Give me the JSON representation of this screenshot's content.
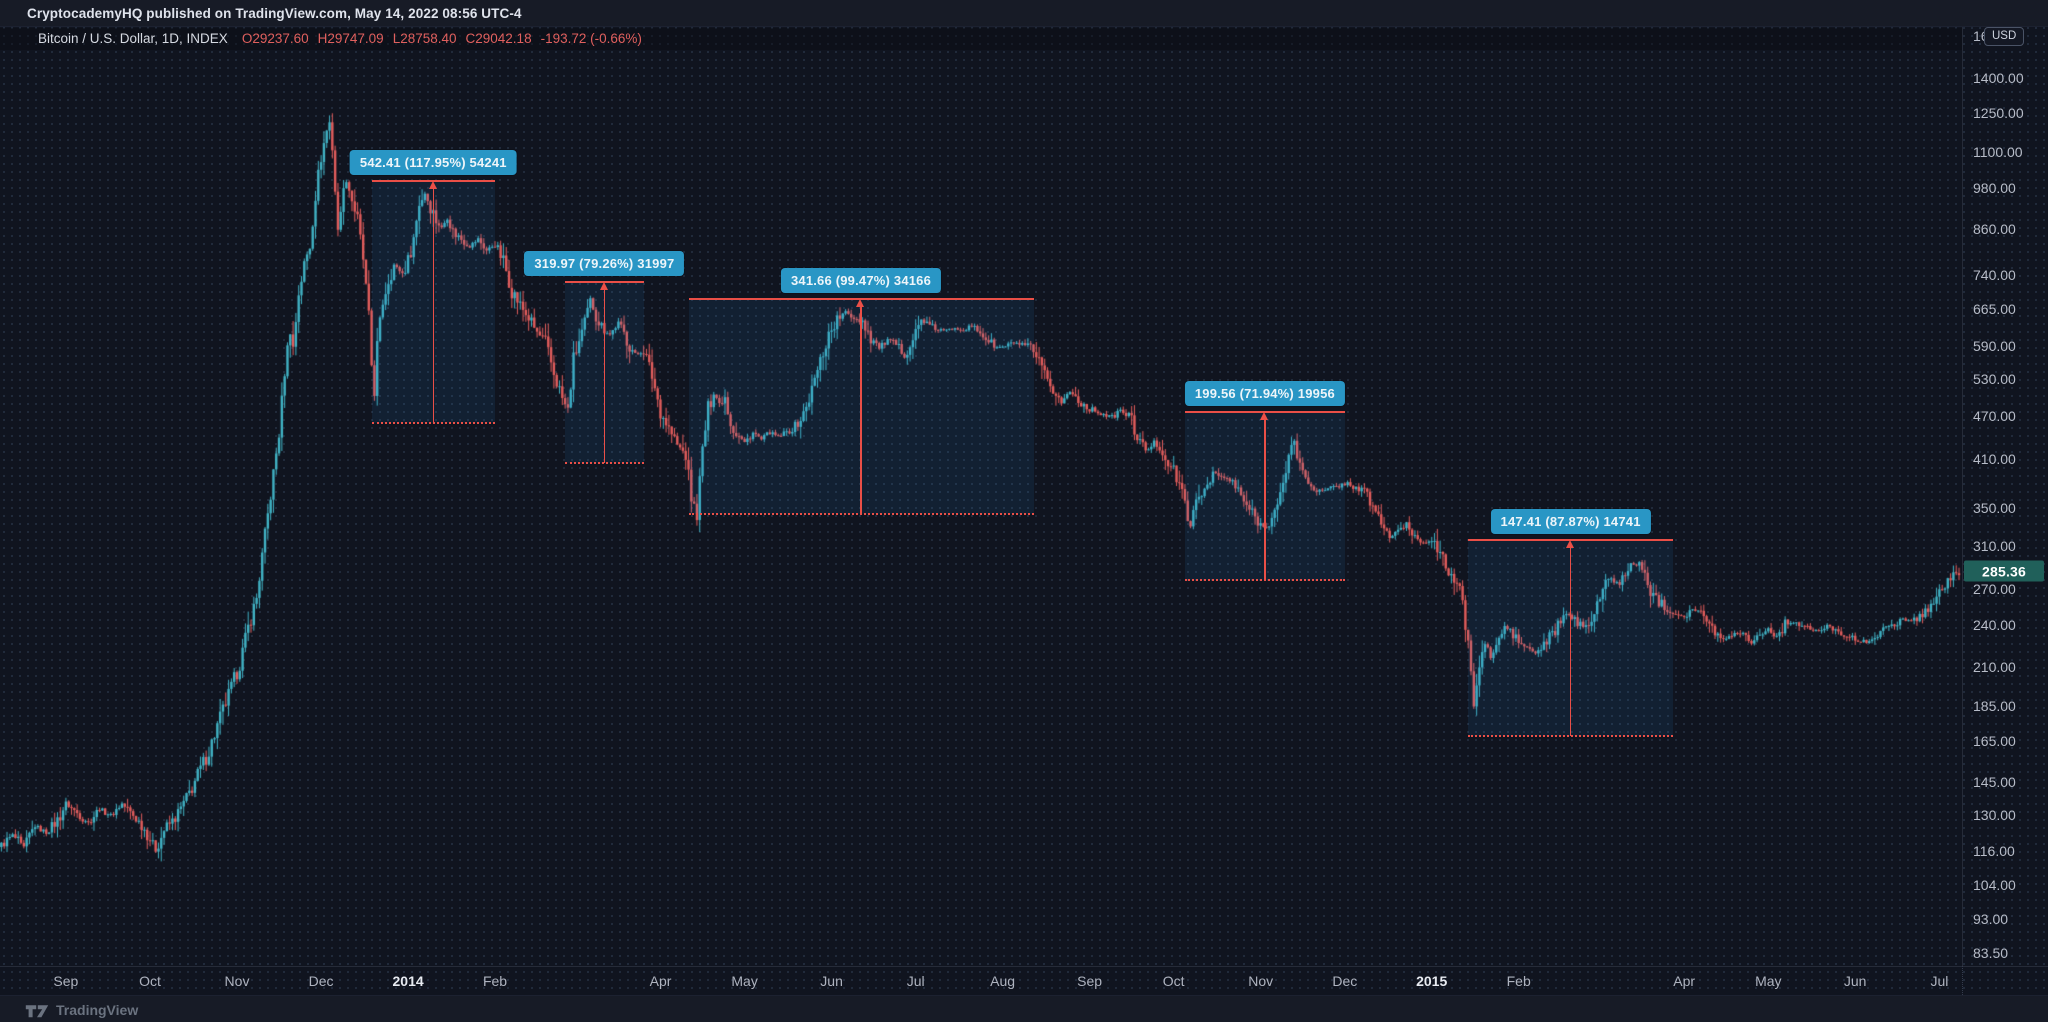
{
  "topbar": {
    "attribution": "CryptocademyHQ published on TradingView.com, May 14, 2022 08:56 UTC-4"
  },
  "legend": {
    "title": "Bitcoin / U.S. Dollar, 1D, INDEX",
    "values": [
      "O29237.60",
      "H29747.09",
      "L28758.40",
      "C29042.18",
      "-193.72 (-0.66%)"
    ]
  },
  "price_axis": {
    "unit": "USD",
    "last_price": "285.36",
    "ticks": [
      1600,
      1400,
      1250,
      1100,
      980,
      860,
      740,
      665,
      590,
      530,
      470,
      410,
      350,
      310,
      270,
      240,
      210,
      185,
      165,
      145,
      130,
      116,
      104,
      93,
      83.5
    ]
  },
  "time_axis": {
    "labels": [
      {
        "day": 23,
        "text": "Sep"
      },
      {
        "day": 53,
        "text": "Oct"
      },
      {
        "day": 84,
        "text": "Nov"
      },
      {
        "day": 114,
        "text": "Dec"
      },
      {
        "day": 145,
        "text": "2014",
        "bold": true
      },
      {
        "day": 176,
        "text": "Feb"
      },
      {
        "day": 235,
        "text": "Apr"
      },
      {
        "day": 265,
        "text": "May"
      },
      {
        "day": 296,
        "text": "Jun"
      },
      {
        "day": 326,
        "text": "Jul"
      },
      {
        "day": 357,
        "text": "Aug"
      },
      {
        "day": 388,
        "text": "Sep"
      },
      {
        "day": 418,
        "text": "Oct"
      },
      {
        "day": 449,
        "text": "Nov"
      },
      {
        "day": 479,
        "text": "Dec"
      },
      {
        "day": 510,
        "text": "2015",
        "bold": true
      },
      {
        "day": 541,
        "text": "Feb"
      },
      {
        "day": 600,
        "text": "Apr"
      },
      {
        "day": 630,
        "text": "May"
      },
      {
        "day": 661,
        "text": "Jun"
      },
      {
        "day": 691,
        "text": "Jul"
      }
    ]
  },
  "watermark": {
    "logo": "tradingview-logo",
    "text": "TradingView"
  },
  "colors": {
    "up_candle": "#41b3c5",
    "down_candle": "#e25d5c",
    "range_line": "#ea4f47",
    "range_fill": "rgba(40,150,230,0.10)",
    "label_pill": "#2996c5",
    "price_tag_bg": "#20605a",
    "legend_values": "#e0605e",
    "background": "#10141f"
  },
  "chart_data": {
    "type": "candlestick",
    "title": "Bitcoin / U.S. Dollar, 1D, INDEX",
    "y_scale": "log",
    "ylim": [
      80.3,
      1663
    ],
    "x_days_total": 699,
    "x_range_note": "approx Aug 2013 to Jul 2015, daily bars",
    "last_close": 285.36,
    "price_path": [
      [
        0,
        118
      ],
      [
        4,
        122
      ],
      [
        8,
        117
      ],
      [
        12,
        126
      ],
      [
        16,
        123
      ],
      [
        20,
        128
      ],
      [
        23,
        135
      ],
      [
        27,
        131
      ],
      [
        31,
        127
      ],
      [
        35,
        133
      ],
      [
        39,
        130
      ],
      [
        43,
        135
      ],
      [
        47,
        130
      ],
      [
        50,
        126
      ],
      [
        53,
        121
      ],
      [
        55,
        116
      ],
      [
        58,
        124
      ],
      [
        62,
        129
      ],
      [
        66,
        137
      ],
      [
        70,
        148
      ],
      [
        74,
        160
      ],
      [
        78,
        178
      ],
      [
        82,
        196
      ],
      [
        85,
        212
      ],
      [
        88,
        238
      ],
      [
        91,
        262
      ],
      [
        94,
        320
      ],
      [
        97,
        390
      ],
      [
        99,
        445
      ],
      [
        101,
        545
      ],
      [
        103,
        625
      ],
      [
        104,
        585
      ],
      [
        106,
        700
      ],
      [
        108,
        765
      ],
      [
        110,
        815
      ],
      [
        112,
        960
      ],
      [
        114,
        1085
      ],
      [
        116,
        1180
      ],
      [
        117,
        1210
      ],
      [
        118,
        1120
      ],
      [
        119,
        975
      ],
      [
        120,
        845
      ],
      [
        121,
        920
      ],
      [
        123,
        1010
      ],
      [
        125,
        945
      ],
      [
        127,
        885
      ],
      [
        129,
        780
      ],
      [
        131,
        645
      ],
      [
        132,
        555
      ],
      [
        133,
        505
      ],
      [
        134,
        590
      ],
      [
        136,
        680
      ],
      [
        138,
        730
      ],
      [
        140,
        765
      ],
      [
        143,
        745
      ],
      [
        145,
        775
      ],
      [
        147,
        835
      ],
      [
        149,
        935
      ],
      [
        151,
        965
      ],
      [
        153,
        925
      ],
      [
        155,
        885
      ],
      [
        157,
        862
      ],
      [
        159,
        892
      ],
      [
        161,
        852
      ],
      [
        164,
        832
      ],
      [
        167,
        812
      ],
      [
        170,
        832
      ],
      [
        173,
        802
      ],
      [
        176,
        818
      ],
      [
        179,
        775
      ],
      [
        182,
        705
      ],
      [
        185,
        672
      ],
      [
        188,
        645
      ],
      [
        191,
        615
      ],
      [
        194,
        595
      ],
      [
        197,
        540
      ],
      [
        200,
        498
      ],
      [
        202,
        478
      ],
      [
        204,
        565
      ],
      [
        206,
        598
      ],
      [
        208,
        632
      ],
      [
        210,
        682
      ],
      [
        212,
        652
      ],
      [
        214,
        628
      ],
      [
        217,
        612
      ],
      [
        220,
        635
      ],
      [
        223,
        602
      ],
      [
        226,
        572
      ],
      [
        229,
        582
      ],
      [
        232,
        535
      ],
      [
        235,
        478
      ],
      [
        238,
        452
      ],
      [
        241,
        428
      ],
      [
        244,
        415
      ],
      [
        246,
        362
      ],
      [
        248,
        344
      ],
      [
        250,
        422
      ],
      [
        252,
        482
      ],
      [
        254,
        508
      ],
      [
        256,
        490
      ],
      [
        258,
        502
      ],
      [
        260,
        462
      ],
      [
        262,
        445
      ],
      [
        265,
        432
      ],
      [
        268,
        446
      ],
      [
        271,
        436
      ],
      [
        274,
        446
      ],
      [
        277,
        440
      ],
      [
        280,
        446
      ],
      [
        283,
        455
      ],
      [
        286,
        472
      ],
      [
        289,
        512
      ],
      [
        292,
        562
      ],
      [
        295,
        612
      ],
      [
        298,
        642
      ],
      [
        301,
        657
      ],
      [
        304,
        646
      ],
      [
        307,
        640
      ],
      [
        310,
        606
      ],
      [
        313,
        586
      ],
      [
        316,
        601
      ],
      [
        319,
        591
      ],
      [
        322,
        572
      ],
      [
        325,
        602
      ],
      [
        328,
        641
      ],
      [
        331,
        629
      ],
      [
        334,
        621
      ],
      [
        337,
        619
      ],
      [
        340,
        626
      ],
      [
        343,
        621
      ],
      [
        346,
        629
      ],
      [
        349,
        616
      ],
      [
        352,
        599
      ],
      [
        355,
        586
      ],
      [
        358,
        589
      ],
      [
        361,
        596
      ],
      [
        364,
        591
      ],
      [
        367,
        586
      ],
      [
        370,
        556
      ],
      [
        373,
        521
      ],
      [
        376,
        506
      ],
      [
        378,
        491
      ],
      [
        381,
        509
      ],
      [
        384,
        496
      ],
      [
        387,
        483
      ],
      [
        390,
        479
      ],
      [
        393,
        473
      ],
      [
        396,
        469
      ],
      [
        399,
        479
      ],
      [
        402,
        471
      ],
      [
        405,
        443
      ],
      [
        408,
        419
      ],
      [
        411,
        433
      ],
      [
        414,
        421
      ],
      [
        417,
        399
      ],
      [
        420,
        379
      ],
      [
        422,
        353
      ],
      [
        424,
        331
      ],
      [
        426,
        353
      ],
      [
        429,
        373
      ],
      [
        432,
        393
      ],
      [
        435,
        386
      ],
      [
        438,
        383
      ],
      [
        441,
        369
      ],
      [
        444,
        353
      ],
      [
        447,
        339
      ],
      [
        450,
        329
      ],
      [
        453,
        339
      ],
      [
        455,
        351
      ],
      [
        457,
        373
      ],
      [
        459,
        421
      ],
      [
        461,
        433
      ],
      [
        463,
        399
      ],
      [
        465,
        386
      ],
      [
        468,
        373
      ],
      [
        471,
        369
      ],
      [
        474,
        373
      ],
      [
        477,
        376
      ],
      [
        480,
        379
      ],
      [
        483,
        373
      ],
      [
        486,
        369
      ],
      [
        489,
        353
      ],
      [
        492,
        333
      ],
      [
        495,
        319
      ],
      [
        498,
        323
      ],
      [
        501,
        333
      ],
      [
        504,
        319
      ],
      [
        507,
        313
      ],
      [
        510,
        317
      ],
      [
        513,
        299
      ],
      [
        516,
        287
      ],
      [
        519,
        273
      ],
      [
        521,
        259
      ],
      [
        523,
        223
      ],
      [
        525,
        189
      ],
      [
        527,
        209
      ],
      [
        529,
        227
      ],
      [
        531,
        217
      ],
      [
        533,
        223
      ],
      [
        536,
        239
      ],
      [
        539,
        233
      ],
      [
        541,
        227
      ],
      [
        544,
        223
      ],
      [
        547,
        219
      ],
      [
        550,
        225
      ],
      [
        553,
        233
      ],
      [
        556,
        243
      ],
      [
        559,
        249
      ],
      [
        562,
        241
      ],
      [
        565,
        239
      ],
      [
        568,
        253
      ],
      [
        571,
        269
      ],
      [
        574,
        279
      ],
      [
        577,
        273
      ],
      [
        580,
        289
      ],
      [
        583,
        293
      ],
      [
        585,
        286
      ],
      [
        588,
        269
      ],
      [
        591,
        259
      ],
      [
        594,
        253
      ],
      [
        597,
        249
      ],
      [
        600,
        247
      ],
      [
        603,
        253
      ],
      [
        606,
        249
      ],
      [
        609,
        239
      ],
      [
        612,
        233
      ],
      [
        615,
        229
      ],
      [
        618,
        235
      ],
      [
        621,
        233
      ],
      [
        624,
        227
      ],
      [
        627,
        233
      ],
      [
        630,
        237
      ],
      [
        633,
        231
      ],
      [
        636,
        241
      ],
      [
        639,
        243
      ],
      [
        642,
        239
      ],
      [
        645,
        237
      ],
      [
        648,
        235
      ],
      [
        651,
        239
      ],
      [
        654,
        237
      ],
      [
        657,
        233
      ],
      [
        660,
        230
      ],
      [
        663,
        227
      ],
      [
        666,
        229
      ],
      [
        669,
        233
      ],
      [
        672,
        237
      ],
      [
        675,
        241
      ],
      [
        678,
        245
      ],
      [
        681,
        243
      ],
      [
        684,
        247
      ],
      [
        687,
        253
      ],
      [
        690,
        263
      ],
      [
        693,
        273
      ],
      [
        696,
        281
      ],
      [
        698,
        285
      ]
    ],
    "measurements": [
      {
        "label": "542.41 (117.95%) 54241",
        "day_start": 132,
        "day_end": 176,
        "price_top": 1002.3,
        "price_bottom": 459.9
      },
      {
        "label": "319.97 (79.26%) 31997",
        "day_start": 201,
        "day_end": 229,
        "price_top": 723.7,
        "price_bottom": 403.7
      },
      {
        "label": "341.66 (99.47%) 34166",
        "day_start": 245,
        "day_end": 368,
        "price_top": 685.2,
        "price_bottom": 343.5
      },
      {
        "label": "199.56 (71.94%) 19956",
        "day_start": 422,
        "day_end": 479,
        "price_top": 477.0,
        "price_bottom": 277.4
      },
      {
        "label": "147.41 (87.87%) 14741",
        "day_start": 523,
        "day_end": 596,
        "price_top": 315.2,
        "price_bottom": 167.8
      }
    ]
  }
}
